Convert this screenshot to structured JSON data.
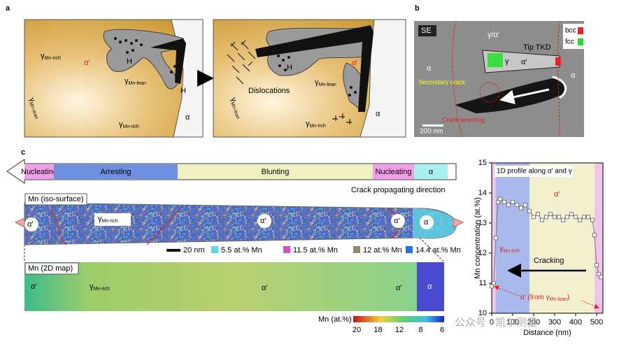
{
  "panel_a": {
    "label": "a",
    "left": [
      {
        "main": "γ",
        "sub": "Mn-rich"
      },
      "α′",
      "H",
      {
        "main": "γ",
        "sub": "Mn-lean"
      },
      "H",
      {
        "main": "γ",
        "sub": "Mn-lean"
      },
      {
        "main": "γ",
        "sub": "Mn-rich"
      },
      "α"
    ],
    "right": [
      "Dislocations",
      "H",
      "α′",
      {
        "main": "γ",
        "sub": "Mn-lean"
      },
      {
        "main": "γ",
        "sub": "Mn-lean"
      },
      {
        "main": "γ",
        "sub": "Mn-rich"
      },
      "α"
    ]
  },
  "panel_b": {
    "label": "b",
    "mode": "SE",
    "phase_top": "γ/α′",
    "alpha_left": "α",
    "alpha_right": "α",
    "tkd_label": "Tip TKD",
    "tkd_alpha": "α′",
    "tkd_gamma": "γ",
    "secondary_crack": "Secondary crack",
    "crack_arresting": "Crack arresting",
    "scale_bar": "200 nm",
    "legend": [
      {
        "name": "bcc",
        "color": "#e8202a"
      },
      {
        "name": "fcc",
        "color": "#22e02a"
      }
    ]
  },
  "panel_c": {
    "label": "c",
    "stages": [
      {
        "name": "Nucleating",
        "color": "#f29ee8"
      },
      {
        "name": "Arresting",
        "color": "#6f90e0"
      },
      {
        "name": "Blunting",
        "color": "#eef0c0"
      },
      {
        "name": "Nucleating",
        "color": "#f29ee8"
      },
      {
        "name": "α",
        "color": "#a8f0f0"
      }
    ],
    "direction": "Crack propagating direction",
    "iso_title": "Mn (iso-surface)",
    "iso_labels": [
      "α′",
      {
        "main": "γ",
        "sub": "Mn-rich"
      },
      "α′",
      "α′",
      "α"
    ],
    "scale_bar": "20 nm",
    "iso_legend": [
      {
        "name": "5.5 at.% Mn",
        "color": "#5fd7e6"
      },
      {
        "name": "11.5 at.% Mn",
        "color": "#d64ec8"
      },
      {
        "name": "12 at.% Mn",
        "color": "#8f8a66"
      },
      {
        "name": "14.4 at.% Mn",
        "color": "#2f6fd6"
      }
    ],
    "map_title": "Mn (2D map)",
    "map_labels": [
      "α′",
      {
        "main": "γ",
        "sub": "Mn-rich"
      },
      "α′",
      "α′",
      "α"
    ],
    "colorbar_title": "Mn (at.%)",
    "colorbar_ticks": [
      20,
      18,
      12,
      8,
      6
    ]
  },
  "chart_data": {
    "type": "line",
    "title": "1D profile along α′ and γ",
    "x_label": "Distance (nm)",
    "y_label": "Mn concentration (at.%)",
    "xlim": [
      0,
      530
    ],
    "ylim": [
      10,
      15
    ],
    "xticks": [
      0,
      100,
      200,
      300,
      400,
      500
    ],
    "yticks": [
      10,
      11,
      12,
      13,
      14,
      15
    ],
    "regions": [
      {
        "start": 0,
        "end": 20,
        "color": "#f2c4ec"
      },
      {
        "start": 20,
        "end": 180,
        "color": "#a9b9ec"
      },
      {
        "start": 180,
        "end": 490,
        "color": "#f2f0cf"
      },
      {
        "start": 490,
        "end": 530,
        "color": "#f2c4ec"
      }
    ],
    "x": [
      0,
      10,
      20,
      30,
      40,
      60,
      80,
      100,
      120,
      140,
      160,
      180,
      200,
      220,
      240,
      260,
      280,
      300,
      320,
      340,
      360,
      380,
      400,
      420,
      440,
      460,
      480,
      490,
      500,
      510,
      520
    ],
    "values": [
      10.9,
      11.0,
      12.5,
      13.7,
      13.8,
      13.7,
      13.6,
      13.7,
      13.6,
      13.5,
      13.6,
      13.4,
      13.2,
      13.3,
      13.1,
      13.2,
      13.3,
      13.2,
      13.2,
      13.1,
      13.2,
      13.3,
      13.2,
      13.1,
      13.2,
      13.2,
      13.1,
      12.6,
      11.6,
      11.3,
      11.2
    ],
    "color": "#777777",
    "annotations": {
      "alpha": "α′",
      "gamma": {
        "main": "γ",
        "sub": "Mn-rich"
      },
      "cracking": "Cracking",
      "origin": [
        "α′ (from γ",
        "Mn-lean",
        ")"
      ]
    }
  },
  "watermark": "公众号 · 凯尔测量"
}
